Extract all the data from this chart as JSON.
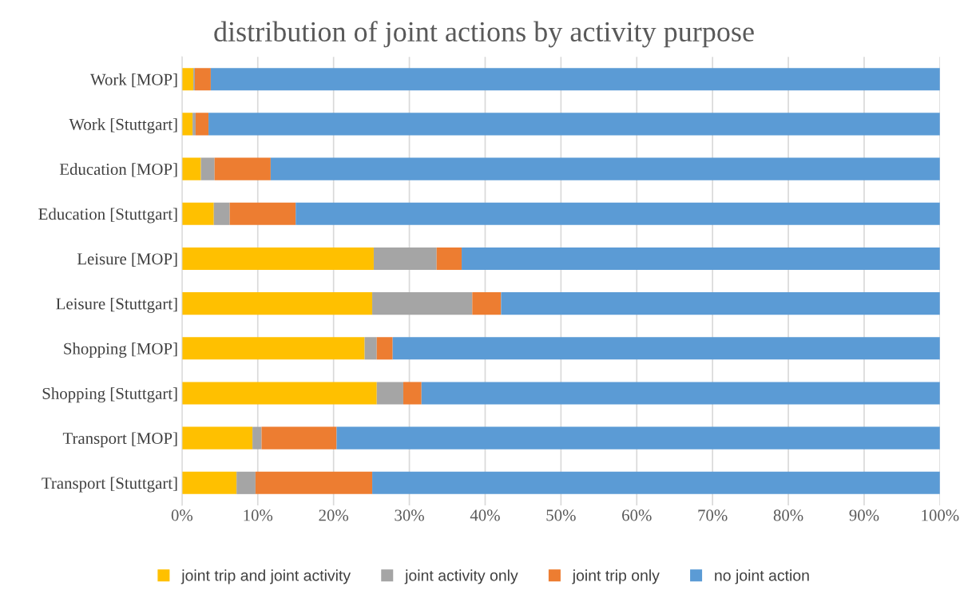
{
  "chart_data": {
    "type": "bar",
    "orientation": "horizontal",
    "stacked": true,
    "title": "distribution of joint actions by activity purpose",
    "categories": [
      "Work [MOP]",
      "Work [Stuttgart]",
      "Education [MOP]",
      "Education [Stuttgart]",
      "Leisure [MOP]",
      "Leisure [Stuttgart]",
      "Shopping [MOP]",
      "Shopping [Stuttgart]",
      "Transport [MOP]",
      "Transport [Stuttgart]"
    ],
    "series": [
      {
        "name": "joint trip and joint activity",
        "color": "#ffc000",
        "values": [
          1.5,
          1.4,
          2.5,
          4.2,
          25.3,
          25.1,
          24.1,
          25.7,
          9.3,
          7.2
        ]
      },
      {
        "name": "joint activity only",
        "color": "#a5a5a5",
        "values": [
          0.2,
          0.4,
          1.8,
          2.1,
          8.3,
          13.2,
          1.6,
          3.5,
          1.2,
          2.5
        ]
      },
      {
        "name": "joint trip only",
        "color": "#ed7d31",
        "values": [
          2.1,
          1.7,
          7.4,
          8.7,
          3.3,
          3.8,
          2.1,
          2.4,
          9.9,
          15.4
        ]
      },
      {
        "name": "no joint action",
        "color": "#5b9bd5",
        "values": [
          96.2,
          96.5,
          88.3,
          85.0,
          63.1,
          57.9,
          72.2,
          68.4,
          79.6,
          74.9
        ]
      }
    ],
    "xlim": [
      0,
      100
    ],
    "xticks": [
      {
        "value": 0,
        "label": "0%"
      },
      {
        "value": 10,
        "label": "10%"
      },
      {
        "value": 20,
        "label": "20%"
      },
      {
        "value": 30,
        "label": "30%"
      },
      {
        "value": 40,
        "label": "40%"
      },
      {
        "value": 50,
        "label": "50%"
      },
      {
        "value": 60,
        "label": "60%"
      },
      {
        "value": 70,
        "label": "70%"
      },
      {
        "value": 80,
        "label": "80%"
      },
      {
        "value": 90,
        "label": "90%"
      },
      {
        "value": 100,
        "label": "100%"
      }
    ],
    "grid": "x",
    "legend": "bottom"
  }
}
